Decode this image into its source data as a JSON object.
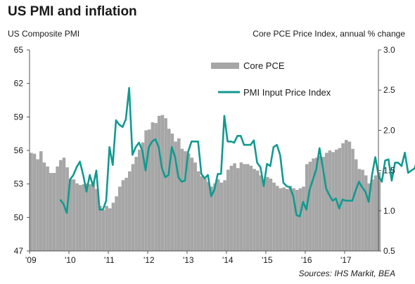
{
  "chart_data": {
    "type": "bar+line",
    "title": "US PMI and inflation",
    "ylabel_left": "US Composite PMI",
    "ylabel_right": "Core PCE Price Index, annual % change",
    "source": "Sources: IHS Markit, BEA",
    "x_ticks": [
      "'09",
      "'10",
      "'11",
      "'12",
      "'13",
      "'14",
      "'15",
      "'16",
      "'17"
    ],
    "ylim_left": [
      47,
      65
    ],
    "yticks_left": [
      47,
      50,
      53,
      56,
      59,
      62,
      65
    ],
    "ylim_right": [
      0.5,
      3.0
    ],
    "yticks_right": [
      "0.5",
      "1.0",
      "1.5",
      "2.0",
      "2.5",
      "3.0"
    ],
    "legend_position": "top-center",
    "start_month": "2009-01",
    "series": [
      {
        "name": "Core PCE",
        "kind": "bar",
        "axis": "right",
        "color": "#a6a6a6",
        "values": [
          1.72,
          1.71,
          1.64,
          1.74,
          1.6,
          1.55,
          1.47,
          1.47,
          1.55,
          1.63,
          1.66,
          1.54,
          1.39,
          1.39,
          1.34,
          1.32,
          1.33,
          1.34,
          1.33,
          1.35,
          1.27,
          1.06,
          1.01,
          1.06,
          1.03,
          1.1,
          1.18,
          1.3,
          1.38,
          1.41,
          1.49,
          1.58,
          1.67,
          1.76,
          1.85,
          2.0,
          2.01,
          2.1,
          2.09,
          2.18,
          2.19,
          2.15,
          2.02,
          1.96,
          1.86,
          1.9,
          1.77,
          1.74,
          1.71,
          1.66,
          1.6,
          1.49,
          1.43,
          1.4,
          1.36,
          1.3,
          1.34,
          1.39,
          1.35,
          1.38,
          1.51,
          1.56,
          1.59,
          1.53,
          1.6,
          1.58,
          1.58,
          1.56,
          1.52,
          1.5,
          1.44,
          1.39,
          1.42,
          1.4,
          1.35,
          1.31,
          1.28,
          1.29,
          1.27,
          1.31,
          1.28,
          1.26,
          1.28,
          1.3,
          1.58,
          1.61,
          1.65,
          1.66,
          1.68,
          1.67,
          1.72,
          1.75,
          1.73,
          1.76,
          1.78,
          1.84,
          1.88,
          1.86,
          1.77,
          1.64,
          1.52,
          1.51,
          1.44,
          1.34,
          1.39,
          1.44,
          1.48
        ]
      },
      {
        "name": "PMI Input Price Index",
        "kind": "line",
        "axis": "left",
        "color": "#119a8f",
        "start_index": 9,
        "values": [
          51.6,
          51.2,
          50.4,
          53.4,
          53.8,
          54.5,
          55.0,
          53.8,
          52.3,
          53.8,
          52.8,
          54.2,
          50.7,
          50.7,
          51.5,
          56.3,
          54.7,
          58.7,
          58.3,
          58.1,
          58.8,
          61.6,
          55.6,
          56.3,
          56.7,
          56.0,
          54.2,
          56.3,
          56.8,
          57.0,
          56.3,
          54.4,
          53.6,
          53.8,
          56.3,
          55.4,
          53.6,
          53.2,
          53.3,
          55.9,
          56.8,
          56.8,
          56.8,
          53.9,
          53.5,
          53.8,
          51.9,
          52.5,
          53.9,
          53.9,
          59.1,
          56.8,
          56.8,
          56.7,
          57.3,
          57.3,
          56.5,
          56.5,
          56.5,
          56.9,
          54.9,
          54.5,
          52.8,
          54.8,
          54.6,
          56.3,
          56.5,
          55.6,
          53.1,
          52.8,
          52.7,
          51.9,
          50.2,
          50.1,
          51.4,
          50.7,
          52.5,
          53.4,
          54.3,
          56.2,
          54.5,
          52.6,
          52.0,
          51.5,
          51.7,
          50.8,
          51.6,
          51.5,
          51.5,
          51.5,
          52.4,
          53.2,
          52.7,
          52.3,
          51.4,
          53.8,
          55.4,
          53.7,
          53.2,
          55.1,
          55.2,
          53.3,
          54.9,
          54.9,
          54.6,
          55.8,
          54.0,
          54.2,
          54.4,
          55.4,
          56.5,
          55.4,
          55.3,
          54.1,
          53.3
        ]
      }
    ]
  }
}
